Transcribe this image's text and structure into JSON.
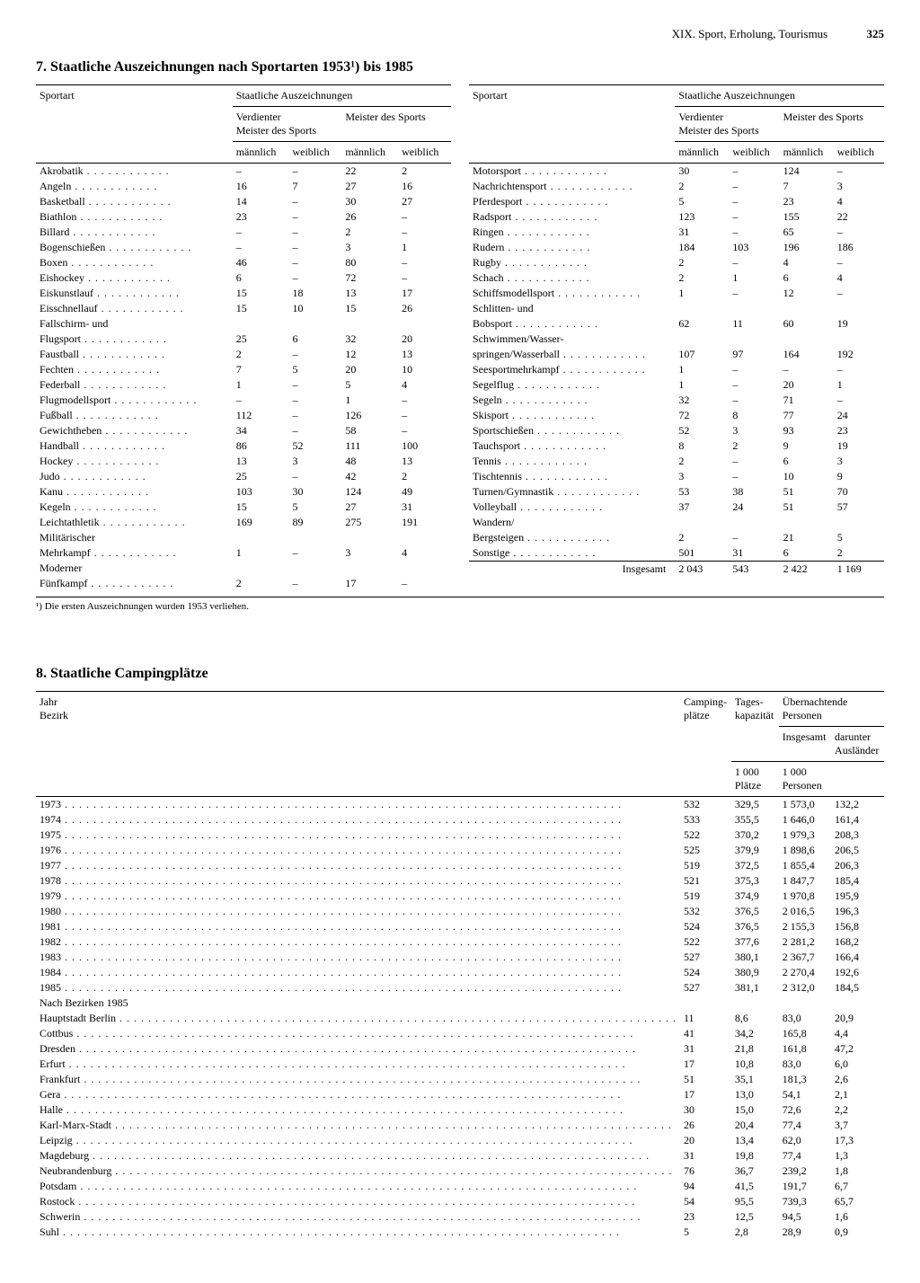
{
  "page": {
    "chapter": "XIX. Sport, Erholung, Tourismus",
    "number": "325"
  },
  "table7": {
    "title": "7. Staatliche Auszeichnungen nach Sportarten 1953¹) bis 1985",
    "headers": {
      "sportart": "Sportart",
      "staatliche": "Staatliche Auszeichnungen",
      "verdienter": "Verdienter\nMeister des Sports",
      "meister": "Meister des Sports",
      "maennlich": "männlich",
      "weiblich": "weiblich"
    },
    "left": [
      [
        "Akrobatik",
        "–",
        "–",
        "22",
        "2"
      ],
      [
        "Angeln",
        "16",
        "7",
        "27",
        "16"
      ],
      [
        "Basketball",
        "14",
        "–",
        "30",
        "27"
      ],
      [
        "Biathlon",
        "23",
        "–",
        "26",
        "–"
      ],
      [
        "Billard",
        "–",
        "–",
        "2",
        "–"
      ],
      [
        "Bogenschießen",
        "–",
        "–",
        "3",
        "1"
      ],
      [
        "Boxen",
        "46",
        "–",
        "80",
        "–"
      ],
      [
        "Eishockey",
        "6",
        "–",
        "72",
        "–"
      ],
      [
        "Eiskunstlauf",
        "15",
        "18",
        "13",
        "17"
      ],
      [
        "Eisschnellauf",
        "15",
        "10",
        "15",
        "26"
      ],
      [
        "Fallschirm- und",
        "",
        "",
        "",
        ""
      ],
      [
        "  Flugsport",
        "25",
        "6",
        "32",
        "20"
      ],
      [
        "Faustball",
        "2",
        "–",
        "12",
        "13"
      ],
      [
        "Fechten",
        "7",
        "5",
        "20",
        "10"
      ],
      [
        "Federball",
        "1",
        "–",
        "5",
        "4"
      ],
      [
        "Flugmodellsport",
        "–",
        "–",
        "1",
        "–"
      ],
      [
        "Fußball",
        "112",
        "–",
        "126",
        "–"
      ],
      [
        "Gewichtheben",
        "34",
        "–",
        "58",
        "–"
      ],
      [
        "Handball",
        "86",
        "52",
        "111",
        "100"
      ],
      [
        "Hockey",
        "13",
        "3",
        "48",
        "13"
      ],
      [
        "Judo",
        "25",
        "–",
        "42",
        "2"
      ],
      [
        "Kanu",
        "103",
        "30",
        "124",
        "49"
      ],
      [
        "Kegeln",
        "15",
        "5",
        "27",
        "31"
      ],
      [
        "Leichtathletik",
        "169",
        "89",
        "275",
        "191"
      ],
      [
        "Militärischer",
        "",
        "",
        "",
        ""
      ],
      [
        "  Mehrkampf",
        "1",
        "–",
        "3",
        "4"
      ],
      [
        "Moderner",
        "",
        "",
        "",
        ""
      ],
      [
        "  Fünfkampf",
        "2",
        "–",
        "17",
        "–"
      ]
    ],
    "right": [
      [
        "Motorsport",
        "30",
        "–",
        "124",
        "–"
      ],
      [
        "Nachrichtensport",
        "2",
        "–",
        "7",
        "3"
      ],
      [
        "Pferdesport",
        "5",
        "–",
        "23",
        "4"
      ],
      [
        "Radsport",
        "123",
        "–",
        "155",
        "22"
      ],
      [
        "Ringen",
        "31",
        "–",
        "65",
        "–"
      ],
      [
        "Rudern",
        "184",
        "103",
        "196",
        "186"
      ],
      [
        "Rugby",
        "2",
        "–",
        "4",
        "–"
      ],
      [
        "Schach",
        "2",
        "1",
        "6",
        "4"
      ],
      [
        "Schiffsmodellsport",
        "1",
        "–",
        "12",
        "–"
      ],
      [
        "Schlitten- und",
        "",
        "",
        "",
        ""
      ],
      [
        "  Bobsport",
        "62",
        "11",
        "60",
        "19"
      ],
      [
        "Schwimmen/Wasser-",
        "",
        "",
        "",
        ""
      ],
      [
        "  springen/Wasserball",
        "107",
        "97",
        "164",
        "192"
      ],
      [
        "Seesportmehrkampf",
        "1",
        "–",
        "–",
        "–"
      ],
      [
        "Segelflug",
        "1",
        "–",
        "20",
        "1"
      ],
      [
        "Segeln",
        "32",
        "–",
        "71",
        "–"
      ],
      [
        "Skisport",
        "72",
        "8",
        "77",
        "24"
      ],
      [
        "Sportschießen",
        "52",
        "3",
        "93",
        "23"
      ],
      [
        "Tauchsport",
        "8",
        "2",
        "9",
        "19"
      ],
      [
        "Tennis",
        "2",
        "–",
        "6",
        "3"
      ],
      [
        "Tischtennis",
        "3",
        "–",
        "10",
        "9"
      ],
      [
        "Turnen/Gymnastik",
        "53",
        "38",
        "51",
        "70"
      ],
      [
        "Volleyball",
        "37",
        "24",
        "51",
        "57"
      ],
      [
        "Wandern/",
        "",
        "",
        "",
        ""
      ],
      [
        "  Bergsteigen",
        "2",
        "–",
        "21",
        "5"
      ],
      [
        "Sonstige",
        "501",
        "31",
        "6",
        "2"
      ]
    ],
    "total": {
      "label": "Insgesamt",
      "values": [
        "2 043",
        "543",
        "2 422",
        "1 169"
      ]
    },
    "footnote": "¹) Die ersten Auszeichnungen wurden 1953 verliehen."
  },
  "table8": {
    "title": "8. Staatliche Campingplätze",
    "headers": {
      "jahr": "Jahr\nBezirk",
      "camping": "Camping-\nplätze",
      "tages": "Tages-\nkapazität",
      "uebernacht": "Übernachtende Personen",
      "insgesamt": "Insgesamt",
      "auslaender": "darunter Ausländer",
      "unit_plaetze": "1 000 Plätze",
      "unit_personen": "1 000 Personen"
    },
    "years": [
      [
        "1973",
        "532",
        "329,5",
        "1 573,0",
        "132,2"
      ],
      [
        "1974",
        "533",
        "355,5",
        "1 646,0",
        "161,4"
      ],
      [
        "1975",
        "522",
        "370,2",
        "1 979,3",
        "208,3"
      ],
      [
        "1976",
        "525",
        "379,9",
        "1 898,6",
        "206,5"
      ],
      [
        "1977",
        "519",
        "372,5",
        "1 855,4",
        "206,3"
      ],
      [
        "1978",
        "521",
        "375,3",
        "1 847,7",
        "185,4"
      ],
      [
        "1979",
        "519",
        "374,9",
        "1 970,8",
        "195,9"
      ],
      [
        "1980",
        "532",
        "376,5",
        "2 016,5",
        "196,3"
      ],
      [
        "1981",
        "524",
        "376,5",
        "2 155,3",
        "156,8"
      ],
      [
        "1982",
        "522",
        "377,6",
        "2 281,2",
        "168,2"
      ],
      [
        "1983",
        "527",
        "380,1",
        "2 367,7",
        "166,4"
      ],
      [
        "1984",
        "524",
        "380,9",
        "2 270,4",
        "192,6"
      ],
      [
        "1985",
        "527",
        "381,1",
        "2 312,0",
        "184,5"
      ]
    ],
    "bezirke_title": "Nach Bezirken 1985",
    "bezirke": [
      [
        "Hauptstadt Berlin",
        "11",
        "8,6",
        "83,0",
        "20,9"
      ],
      [
        "Cottbus",
        "41",
        "34,2",
        "165,8",
        "4,4"
      ],
      [
        "Dresden",
        "31",
        "21,8",
        "161,8",
        "47,2"
      ],
      [
        "Erfurt",
        "17",
        "10,8",
        "83,0",
        "6,0"
      ],
      [
        "Frankfurt",
        "51",
        "35,1",
        "181,3",
        "2,6"
      ],
      [
        "Gera",
        "17",
        "13,0",
        "54,1",
        "2,1"
      ],
      [
        "Halle",
        "30",
        "15,0",
        "72,6",
        "2,2"
      ],
      [
        "Karl-Marx-Stadt",
        "26",
        "20,4",
        "77,4",
        "3,7"
      ],
      [
        "Leipzig",
        "20",
        "13,4",
        "62,0",
        "17,3"
      ],
      [
        "Magdeburg",
        "31",
        "19,8",
        "77,4",
        "1,3"
      ],
      [
        "Neubrandenburg",
        "76",
        "36,7",
        "239,2",
        "1,8"
      ],
      [
        "Potsdam",
        "94",
        "41,5",
        "191,7",
        "6,7"
      ],
      [
        "Rostock",
        "54",
        "95,5",
        "739,3",
        "65,7"
      ],
      [
        "Schwerin",
        "23",
        "12,5",
        "94,5",
        "1,6"
      ],
      [
        "Suhl",
        "5",
        "2,8",
        "28,9",
        "0,9"
      ]
    ]
  }
}
